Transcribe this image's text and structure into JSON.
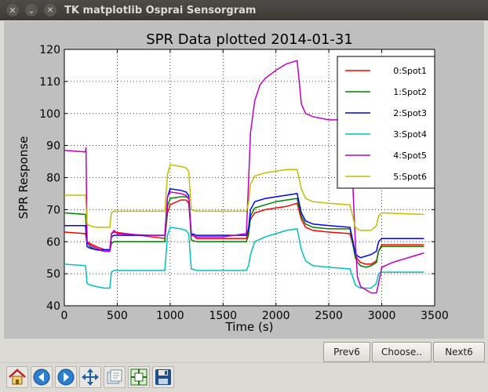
{
  "window": {
    "title": "TK matplotlib Osprai Sensorgram",
    "menu_icon": "chevron-down-icon",
    "close_icon": "close-icon"
  },
  "buttons": {
    "prev": "Prev6",
    "choose": "Choose..",
    "next": "Next6"
  },
  "toolbar": [
    {
      "name": "home-icon"
    },
    {
      "name": "back-arrow-icon"
    },
    {
      "name": "forward-arrow-icon"
    },
    {
      "name": "pan-icon"
    },
    {
      "name": "zoom-icon"
    },
    {
      "name": "configure-subplots-icon"
    },
    {
      "name": "save-icon"
    }
  ],
  "chart_data": {
    "type": "line",
    "title": "SPR Data plotted 2014-01-31",
    "xlabel": "Time (s)",
    "ylabel": "SPR Response",
    "xlim": [
      0,
      3500
    ],
    "ylim": [
      40,
      120
    ],
    "xticks": [
      0,
      500,
      1000,
      1500,
      2000,
      2500,
      3000,
      3500
    ],
    "yticks": [
      40,
      50,
      60,
      70,
      80,
      90,
      100,
      110,
      120
    ],
    "grid": true,
    "legend_position": "top-right",
    "series": [
      {
        "name": "0:Spot1",
        "color": "#ff0000",
        "x": [
          0,
          200,
          215,
          240,
          300,
          380,
          430,
          445,
          470,
          950,
          975,
          1000,
          1100,
          1150,
          1175,
          1200,
          1250,
          1720,
          1740,
          1760,
          1800,
          1900,
          2000,
          2100,
          2200,
          2240,
          2280,
          2350,
          2500,
          2700,
          2750,
          2770,
          2800,
          2850,
          2900,
          2950,
          2970,
          3000,
          3400
        ],
        "y": [
          63,
          62.5,
          60,
          59.5,
          58.5,
          57.5,
          57.5,
          62.5,
          63,
          61,
          69,
          71.5,
          73,
          73,
          72,
          62.5,
          61,
          61,
          63,
          67,
          69,
          70,
          70.5,
          71,
          72,
          67,
          64.5,
          63.5,
          63,
          62.5,
          56,
          54.5,
          53.5,
          53,
          53,
          54,
          57,
          59,
          59
        ]
      },
      {
        "name": "1:Spot2",
        "color": "#008000",
        "x": [
          0,
          200,
          215,
          240,
          300,
          380,
          430,
          445,
          470,
          950,
          975,
          1000,
          1100,
          1150,
          1175,
          1200,
          1250,
          1720,
          1740,
          1760,
          1800,
          1900,
          2000,
          2100,
          2200,
          2240,
          2280,
          2350,
          2500,
          2700,
          2750,
          2770,
          2800,
          2850,
          2900,
          2950,
          2970,
          3000,
          3400
        ],
        "y": [
          69,
          68.5,
          60,
          58.5,
          57.5,
          57,
          57,
          59.5,
          60,
          60,
          71,
          73.5,
          74,
          74,
          73.5,
          60.5,
          60,
          60,
          62,
          68,
          70.5,
          71.5,
          72.5,
          73,
          73.5,
          68,
          65.5,
          64.5,
          64,
          64,
          55,
          53.5,
          52.5,
          52,
          52.5,
          53.5,
          57,
          58.5,
          58.5
        ]
      },
      {
        "name": "2:Spot3",
        "color": "#0000ff",
        "x": [
          0,
          200,
          215,
          240,
          300,
          380,
          430,
          445,
          470,
          950,
          975,
          1000,
          1100,
          1150,
          1175,
          1200,
          1250,
          1720,
          1740,
          1760,
          1800,
          1900,
          2000,
          2100,
          2200,
          2240,
          2280,
          2350,
          2500,
          2700,
          2750,
          2770,
          2800,
          2850,
          2900,
          2950,
          2970,
          3000,
          3400
        ],
        "y": [
          65,
          65,
          58.5,
          58,
          57.5,
          57.5,
          57.5,
          61.5,
          62,
          62,
          74,
          76.5,
          76,
          75.5,
          74.5,
          62.5,
          62,
          62,
          64,
          70,
          72.5,
          73.5,
          74,
          74.5,
          75,
          69,
          66.5,
          65.5,
          65,
          64.5,
          56.5,
          55.5,
          55,
          55.5,
          56,
          57,
          60,
          61,
          61
        ]
      },
      {
        "name": "3:Spot4",
        "color": "#00bfbf",
        "x": [
          0,
          200,
          215,
          240,
          300,
          380,
          430,
          445,
          470,
          950,
          975,
          1000,
          1100,
          1150,
          1175,
          1200,
          1250,
          1720,
          1740,
          1760,
          1800,
          1900,
          2000,
          2100,
          2200,
          2240,
          2280,
          2350,
          2500,
          2700,
          2750,
          2770,
          2800,
          2850,
          2900,
          2950,
          2970,
          3000,
          3400
        ],
        "y": [
          53,
          52.5,
          47,
          46.5,
          46,
          45.5,
          45.5,
          50.5,
          51,
          51,
          62,
          64.5,
          64,
          63.5,
          62.5,
          51.5,
          51,
          51,
          52.5,
          56,
          60,
          61.5,
          62.5,
          63.5,
          64,
          57.5,
          54,
          52.5,
          52,
          51.5,
          46.5,
          46,
          45.5,
          45.5,
          45.5,
          47,
          50,
          50.5,
          50.5
        ]
      },
      {
        "name": "4:Spot5",
        "color": "#bf00bf",
        "x": [
          0,
          200,
          205,
          215,
          240,
          300,
          380,
          430,
          445,
          470,
          500,
          800,
          950,
          975,
          1000,
          1100,
          1150,
          1175,
          1200,
          1250,
          1500,
          1720,
          1740,
          1760,
          1800,
          1850,
          1900,
          2000,
          2100,
          2200,
          2220,
          2240,
          2280,
          2350,
          2500,
          2700,
          2750,
          2770,
          2800,
          2850,
          2900,
          2950,
          2970,
          3000,
          3100,
          3200,
          3300,
          3400
        ],
        "y": [
          88.5,
          88,
          89.5,
          60,
          59,
          58,
          57,
          57,
          62.5,
          63.5,
          62.5,
          62,
          62,
          74,
          75.5,
          75,
          74.5,
          73.5,
          62,
          61.5,
          61.5,
          62.5,
          78,
          94,
          104,
          109,
          111,
          113.5,
          115.5,
          116.5,
          110,
          103,
          100,
          99,
          98,
          98,
          60,
          49,
          46,
          45,
          44,
          44,
          47,
          52,
          53.5,
          54.5,
          55.5,
          56.5
        ]
      },
      {
        "name": "5:Spot6",
        "color": "#bfbf00",
        "x": [
          0,
          200,
          215,
          240,
          300,
          380,
          430,
          445,
          470,
          950,
          975,
          1000,
          1100,
          1150,
          1175,
          1200,
          1250,
          1720,
          1740,
          1760,
          1800,
          1900,
          2000,
          2100,
          2200,
          2240,
          2280,
          2350,
          2500,
          2700,
          2750,
          2770,
          2800,
          2850,
          2900,
          2950,
          2970,
          3000,
          3400
        ],
        "y": [
          74.5,
          74.5,
          65.5,
          65,
          64.5,
          64.5,
          64.5,
          69,
          69.5,
          69.5,
          81,
          84,
          83.5,
          83,
          82,
          70,
          69.5,
          69.5,
          72,
          78,
          80.5,
          81.5,
          82,
          82.5,
          82.5,
          76.5,
          73.5,
          72.5,
          72,
          71.5,
          64.5,
          64,
          63.5,
          63.5,
          63.5,
          65,
          68,
          69,
          68.5
        ]
      }
    ]
  }
}
